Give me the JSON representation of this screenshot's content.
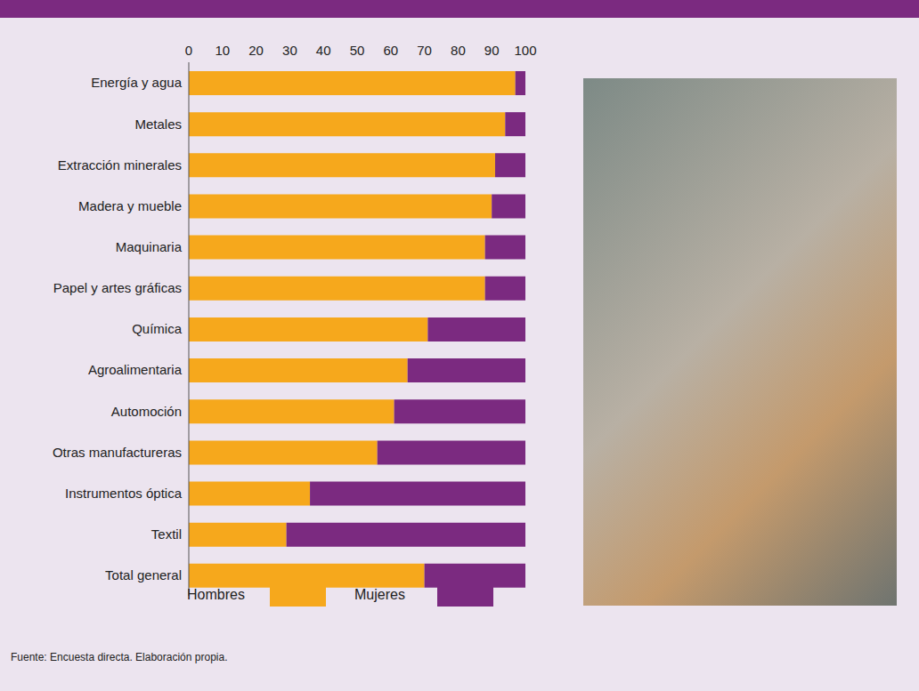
{
  "chart_data": {
    "type": "bar",
    "orientation": "horizontal",
    "stacked": true,
    "grid": false,
    "legend": "bottom",
    "categories": [
      "Energía y agua",
      "Metales",
      "Extracción minerales",
      "Madera y mueble",
      "Maquinaria",
      "Papel y artes gráficas",
      "Química",
      "Agroalimentaria",
      "Automoción",
      "Otras manufactureras",
      "Instrumentos óptica",
      "Textil",
      "Total general"
    ],
    "series": [
      {
        "name": "Hombres",
        "color": "#f6a81c",
        "values": [
          97,
          94,
          91,
          90,
          88,
          88,
          71,
          65,
          61,
          56,
          36,
          29,
          70
        ]
      },
      {
        "name": "Mujeres",
        "color": "#7b2a80",
        "values": [
          3,
          6,
          9,
          10,
          12,
          12,
          29,
          35,
          39,
          44,
          64,
          71,
          30
        ]
      }
    ],
    "xlim": [
      0,
      100
    ],
    "xticks": [
      0,
      10,
      20,
      30,
      40,
      50,
      60,
      70,
      80,
      90,
      100
    ],
    "source": "Fuente: Encuesta directa. Elaboración propia."
  }
}
